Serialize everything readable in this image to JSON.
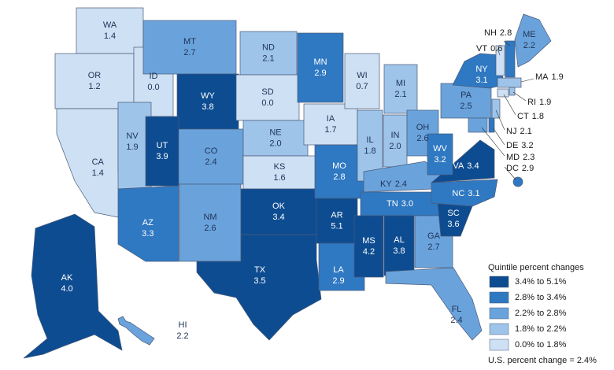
{
  "map": {
    "states": [
      {
        "abbr": "WA",
        "value": 1.4,
        "color": "#cde0f4"
      },
      {
        "abbr": "OR",
        "value": 1.2,
        "color": "#cde0f4"
      },
      {
        "abbr": "CA",
        "value": 1.4,
        "color": "#cde0f4"
      },
      {
        "abbr": "ID",
        "value": 0,
        "value_label": "0.0",
        "color": "#cde0f4"
      },
      {
        "abbr": "NV",
        "value": 1.9,
        "color": "#9ec4ea"
      },
      {
        "abbr": "MT",
        "value": 2.7,
        "color": "#6aa3dc"
      },
      {
        "abbr": "WY",
        "value": 3.8,
        "color": "#0d4c91"
      },
      {
        "abbr": "UT",
        "value": 3.9,
        "color": "#0d4c91"
      },
      {
        "abbr": "CO",
        "value": 2.4,
        "color": "#6aa3dc"
      },
      {
        "abbr": "AZ",
        "value": 3.3,
        "color": "#2f78c2"
      },
      {
        "abbr": "NM",
        "value": 2.6,
        "color": "#6aa3dc"
      },
      {
        "abbr": "ND",
        "value": 2.1,
        "color": "#9ec4ea"
      },
      {
        "abbr": "SD",
        "value": 0,
        "value_label": "0.0",
        "color": "#cde0f4"
      },
      {
        "abbr": "NE",
        "value": 2,
        "value_label": "2.0",
        "color": "#9ec4ea"
      },
      {
        "abbr": "KS",
        "value": 1.6,
        "color": "#cde0f4"
      },
      {
        "abbr": "OK",
        "value": 3.4,
        "color": "#0d4c91"
      },
      {
        "abbr": "TX",
        "value": 3.5,
        "color": "#0d4c91"
      },
      {
        "abbr": "MN",
        "value": 2.9,
        "color": "#2f78c2"
      },
      {
        "abbr": "IA",
        "value": 1.7,
        "color": "#cde0f4"
      },
      {
        "abbr": "MO",
        "value": 2.8,
        "color": "#2f78c2"
      },
      {
        "abbr": "AR",
        "value": 5.1,
        "color": "#0d4c91"
      },
      {
        "abbr": "LA",
        "value": 2.9,
        "color": "#2f78c2"
      },
      {
        "abbr": "WI",
        "value": 0.7,
        "color": "#cde0f4"
      },
      {
        "abbr": "IL",
        "value": 1.8,
        "color": "#9ec4ea"
      },
      {
        "abbr": "MI",
        "value": 2.1,
        "color": "#9ec4ea"
      },
      {
        "abbr": "IN",
        "value": 2,
        "value_label": "2.0",
        "color": "#9ec4ea"
      },
      {
        "abbr": "OH",
        "value": 2.6,
        "color": "#6aa3dc"
      },
      {
        "abbr": "KY",
        "value": 2.4,
        "color": "#6aa3dc"
      },
      {
        "abbr": "TN",
        "value": 3,
        "value_label": "3.0",
        "color": "#2f78c2"
      },
      {
        "abbr": "MS",
        "value": 4.2,
        "color": "#0d4c91"
      },
      {
        "abbr": "AL",
        "value": 3.8,
        "color": "#0d4c91"
      },
      {
        "abbr": "GA",
        "value": 2.7,
        "color": "#6aa3dc"
      },
      {
        "abbr": "FL",
        "value": 2.4,
        "color": "#6aa3dc"
      },
      {
        "abbr": "SC",
        "value": 3.6,
        "color": "#0d4c91"
      },
      {
        "abbr": "NC",
        "value": 3.1,
        "color": "#2f78c2"
      },
      {
        "abbr": "VA",
        "value": 3.4,
        "color": "#0d4c91"
      },
      {
        "abbr": "WV",
        "value": 3.2,
        "color": "#2f78c2"
      },
      {
        "abbr": "PA",
        "value": 2.5,
        "color": "#6aa3dc"
      },
      {
        "abbr": "NY",
        "value": 3.1,
        "color": "#2f78c2"
      },
      {
        "abbr": "MD",
        "value": 2.3,
        "color": "#6aa3dc"
      },
      {
        "abbr": "DE",
        "value": 3.2,
        "color": "#2f78c2"
      },
      {
        "abbr": "NJ",
        "value": 2.1,
        "color": "#9ec4ea"
      },
      {
        "abbr": "CT",
        "value": 1.8,
        "color": "#cde0f4"
      },
      {
        "abbr": "RI",
        "value": 1.9,
        "color": "#9ec4ea"
      },
      {
        "abbr": "MA",
        "value": 1.9,
        "color": "#9ec4ea"
      },
      {
        "abbr": "VT",
        "value": 0.6,
        "color": "#cde0f4"
      },
      {
        "abbr": "NH",
        "value": 2.8,
        "color": "#2f78c2"
      },
      {
        "abbr": "ME",
        "value": 2.2,
        "color": "#6aa3dc"
      },
      {
        "abbr": "DC",
        "value": 2.9,
        "color": "#2f78c2"
      },
      {
        "abbr": "AK",
        "value": 4,
        "value_label": "4.0",
        "color": "#0d4c91"
      },
      {
        "abbr": "HI",
        "value": 2.2,
        "color": "#6aa3dc"
      }
    ],
    "legend": {
      "title": "Quintile percent changes",
      "items": [
        {
          "label": "3.4% to 5.1%",
          "color": "#0d4c91"
        },
        {
          "label": "2.8% to 3.4%",
          "color": "#2f78c2"
        },
        {
          "label": "2.2% to 2.8%",
          "color": "#6aa3dc"
        },
        {
          "label": "1.8% to 2.2%",
          "color": "#9ec4ea"
        },
        {
          "label": "0.0% to 1.8%",
          "color": "#cde0f4"
        }
      ]
    },
    "note": "U.S. percent change = 2.4%"
  }
}
